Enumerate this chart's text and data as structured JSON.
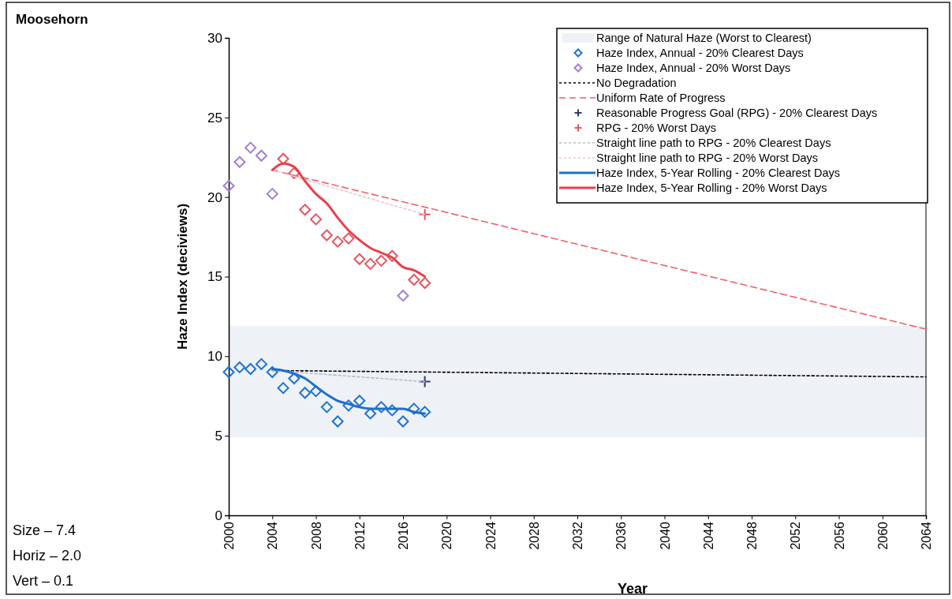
{
  "chart_data": {
    "type": "scatter",
    "title": "Moosehorn",
    "xlabel": "Year",
    "ylabel": "Haze Index (deciviews)",
    "annotations": [
      "Size – 7.4",
      "Horiz – 2.0",
      "Vert – 0.1"
    ],
    "xlim": [
      2000,
      2064
    ],
    "xticks": [
      2000,
      2004,
      2008,
      2012,
      2016,
      2020,
      2024,
      2028,
      2032,
      2036,
      2040,
      2044,
      2048,
      2052,
      2056,
      2060,
      2064
    ],
    "ylim": [
      0,
      30
    ],
    "yticks": [
      0,
      5,
      10,
      15,
      20,
      25,
      30
    ],
    "grid": false,
    "legend": "top right",
    "bands": [
      {
        "axis": "y",
        "from": 4.9,
        "to": 11.9,
        "label": "Range of Natural Haze (Worst to Clearest)",
        "color": "#eef1f6"
      }
    ],
    "series": [
      {
        "name": "Haze Index, Annual - 20% Clearest Days",
        "marker": "diamond",
        "color": "#1e73d2",
        "x": [
          2000,
          2001,
          2002,
          2003,
          2004,
          2005,
          2006,
          2007,
          2008,
          2009,
          2010,
          2011,
          2012,
          2013,
          2014,
          2015,
          2016,
          2017,
          2018
        ],
        "values": [
          9.0,
          9.3,
          9.2,
          9.5,
          9.0,
          8.0,
          8.6,
          7.7,
          7.8,
          6.8,
          5.9,
          6.9,
          7.2,
          6.4,
          6.8,
          6.6,
          5.9,
          6.7,
          6.5
        ]
      },
      {
        "name": "Haze Index, Annual - 20% Worst Days",
        "marker": "diamond",
        "color": "#a07fd6",
        "colors": [
          "#a07fd6",
          "#a07fd6",
          "#a07fd6",
          "#a07fd6",
          "#a07fd6",
          "#e8545e",
          "#e8545e",
          "#e8545e",
          "#e8545e",
          "#e8545e",
          "#e8545e",
          "#e8545e",
          "#e8545e",
          "#e8545e",
          "#e8545e",
          "#e8545e",
          "#a07fd6",
          "#e8545e",
          "#e8545e"
        ],
        "x": [
          2000,
          2001,
          2002,
          2003,
          2004,
          2005,
          2006,
          2007,
          2008,
          2009,
          2010,
          2011,
          2012,
          2013,
          2014,
          2015,
          2016,
          2017,
          2018
        ],
        "values": [
          20.7,
          22.2,
          23.1,
          22.6,
          20.2,
          22.4,
          21.5,
          19.2,
          18.6,
          17.6,
          17.2,
          17.4,
          16.1,
          15.8,
          16.0,
          16.3,
          13.8,
          14.8,
          14.6
        ]
      },
      {
        "name": "No Degradation",
        "type": "line",
        "line_style": "dotted",
        "marker": "none",
        "color": "#000000",
        "x": [
          2004,
          2064
        ],
        "values": [
          9.1,
          8.7
        ]
      },
      {
        "name": "Uniform Rate of Progress",
        "type": "line",
        "line_style": "dashed",
        "marker": "none",
        "color": "#f0606a",
        "x": [
          2004,
          2064
        ],
        "values": [
          21.7,
          11.7
        ]
      },
      {
        "name": "Reasonable Progress Goal (RPG) - 20% Clearest Days",
        "marker": "cross",
        "color": "#2c3e66",
        "x": [
          2018
        ],
        "values": [
          8.4
        ]
      },
      {
        "name": "RPG - 20% Worst Days",
        "marker": "cross",
        "color": "#e8545e",
        "x": [
          2018
        ],
        "values": [
          18.9
        ]
      },
      {
        "name": "Straight line path to RPG - 20% Clearest Days",
        "type": "line",
        "line_style": "dotted",
        "marker": "none",
        "color": "#b8bcc4",
        "x": [
          2004,
          2018
        ],
        "values": [
          9.1,
          8.4
        ]
      },
      {
        "name": "Straight line path to RPG - 20% Worst Days",
        "type": "line",
        "line_style": "dotted",
        "marker": "none",
        "color": "#f6c4c8",
        "x": [
          2004,
          2018
        ],
        "values": [
          21.7,
          18.9
        ]
      },
      {
        "name": "Haze Index, 5-Year Rolling - 20% Clearest Days",
        "type": "line",
        "line_style": "solid",
        "marker": "none",
        "color": "#1e6fd0",
        "x": [
          2004,
          2005,
          2006,
          2007,
          2008,
          2009,
          2010,
          2011,
          2012,
          2013,
          2014,
          2015,
          2016,
          2017,
          2018
        ],
        "values": [
          9.2,
          9.1,
          8.9,
          8.6,
          8.1,
          7.6,
          7.2,
          7.0,
          6.8,
          6.7,
          6.7,
          6.7,
          6.7,
          6.5,
          6.4
        ]
      },
      {
        "name": "Haze Index, 5-Year Rolling - 20% Worst Days",
        "type": "line",
        "line_style": "solid",
        "marker": "none",
        "color": "#e8404c",
        "x": [
          2004,
          2005,
          2006,
          2007,
          2008,
          2009,
          2010,
          2011,
          2012,
          2013,
          2014,
          2015,
          2016,
          2017,
          2018
        ],
        "values": [
          21.7,
          22.1,
          21.9,
          21.0,
          20.2,
          19.6,
          18.7,
          17.9,
          17.3,
          16.8,
          16.5,
          16.2,
          15.6,
          15.4,
          15.0
        ]
      }
    ]
  }
}
